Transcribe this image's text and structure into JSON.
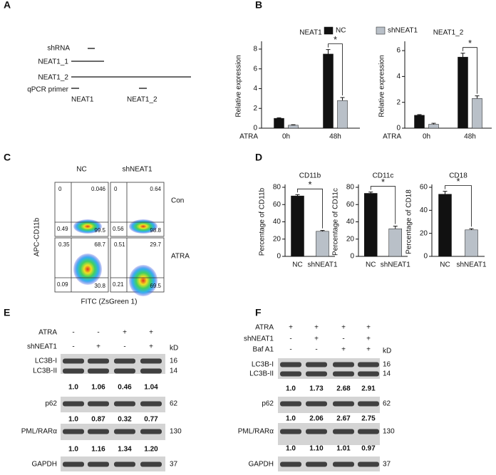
{
  "panel_labels": [
    "A",
    "B",
    "C",
    "D",
    "E",
    "F"
  ],
  "schematic": {
    "shrna": "shRNA",
    "isoforms": [
      "NEAT1_1",
      "NEAT1_2"
    ],
    "primer_label": "qPCR primer",
    "primers": [
      "NEAT1",
      "NEAT1_2"
    ]
  },
  "chart_data": [
    {
      "type": "bar",
      "title": "NEAT1",
      "y_label": "Relative expression",
      "x_label": "ATRA",
      "categories": [
        "0h",
        "48h"
      ],
      "series": [
        {
          "name": "NC",
          "color": "#111111",
          "values": [
            1.0,
            7.5
          ],
          "errors": [
            0.05,
            0.45
          ]
        },
        {
          "color": "#b9c0c8",
          "values": [
            0.3,
            2.8
          ],
          "errors": [
            0.05,
            0.3
          ]
        }
      ],
      "ylim": [
        0,
        8.5
      ],
      "yticks": [
        0,
        2,
        4,
        6,
        8
      ],
      "annotation": "*"
    },
    {
      "type": "bar",
      "title": "NEAT1_2",
      "y_label": "Relative expression",
      "x_label": "ATRA",
      "categories": [
        "0h",
        "48h"
      ],
      "series": [
        {
          "color": "#111111",
          "values": [
            1.0,
            5.5
          ],
          "errors": [
            0.05,
            0.3
          ]
        },
        {
          "name": "shNEAT1",
          "color": "#b9c0c8",
          "values": [
            0.3,
            2.3
          ],
          "errors": [
            0.08,
            0.2
          ]
        }
      ],
      "ylim": [
        0,
        6.5
      ],
      "yticks": [
        0,
        2,
        4,
        6
      ],
      "annotation": "*"
    },
    {
      "type": "bar",
      "title": "CD11b",
      "y_label": "Percentage of CD11b",
      "categories": [
        "NC",
        "shNEAT1"
      ],
      "values": [
        70,
        29
      ],
      "errors": [
        1.5,
        1
      ],
      "colors": [
        "#111111",
        "#b9c0c8"
      ],
      "ylim": [
        0,
        80
      ],
      "yticks": [
        0,
        20,
        40,
        60,
        80
      ],
      "annotation": "*"
    },
    {
      "type": "bar",
      "title": "CD11c",
      "y_label": "Percentage of CD11c",
      "categories": [
        "NC",
        "shNEAT1"
      ],
      "values": [
        73,
        32
      ],
      "errors": [
        1.5,
        3
      ],
      "colors": [
        "#111111",
        "#b9c0c8"
      ],
      "ylim": [
        0,
        80
      ],
      "yticks": [
        0,
        20,
        40,
        60,
        80
      ],
      "annotation": "*"
    },
    {
      "type": "bar",
      "title": "CD18",
      "y_label": "Percentage of CD18",
      "categories": [
        "NC",
        "shNEAT1"
      ],
      "values": [
        54,
        23
      ],
      "errors": [
        2.5,
        1
      ],
      "colors": [
        "#111111",
        "#b9c0c8"
      ],
      "ylim": [
        0,
        60
      ],
      "yticks": [
        0,
        20,
        40,
        60
      ],
      "annotation": "*"
    }
  ],
  "flow": {
    "columns": [
      "NC",
      "shNEAT1"
    ],
    "rows": [
      "Con",
      "ATRA"
    ],
    "y_label": "APC-CD11b",
    "x_label": "FITC (ZsGreen 1)",
    "quadrants": [
      [
        [
          "0",
          "0.046",
          "0.49",
          "99.5"
        ],
        [
          "0",
          "0.64",
          "0.56",
          "98.8"
        ]
      ],
      [
        [
          "0.35",
          "68.7",
          "0.09",
          "30.8"
        ],
        [
          "0.51",
          "29.7",
          "0.21",
          "69.5"
        ]
      ]
    ]
  },
  "blots": [
    {
      "conditions": [
        {
          "name": "ATRA",
          "signs": [
            "-",
            "-",
            "+",
            "+"
          ]
        },
        {
          "name": "shNEAT1",
          "signs": [
            "-",
            "+",
            "-",
            "+"
          ]
        }
      ],
      "kd_label": "kD",
      "rows": [
        {
          "names": [
            "LC3B-I",
            "LC3B-II"
          ],
          "kd": [
            "16",
            "14"
          ],
          "quant": [
            "1.0",
            "1.06",
            "0.46",
            "1.04"
          ]
        },
        {
          "names": [
            "p62"
          ],
          "kd": [
            "62"
          ],
          "quant": [
            "1.0",
            "0.87",
            "0.32",
            "0.77"
          ]
        },
        {
          "names": [
            "PML/RARα"
          ],
          "kd": [
            "130"
          ],
          "quant": [
            "1.0",
            "1.16",
            "1.34",
            "1.20"
          ]
        },
        {
          "names": [
            "GAPDH"
          ],
          "kd": [
            "37"
          ]
        }
      ]
    },
    {
      "conditions": [
        {
          "name": "ATRA",
          "signs": [
            "+",
            "+",
            "+",
            "+"
          ]
        },
        {
          "name": "shNEAT1",
          "signs": [
            "-",
            "+",
            "-",
            "+"
          ]
        },
        {
          "name": "Baf A1",
          "signs": [
            "-",
            "-",
            "+",
            "+"
          ]
        }
      ],
      "kd_label": "kD",
      "rows": [
        {
          "names": [
            "LC3B-I",
            "LC3B-II"
          ],
          "kd": [
            "16",
            "14"
          ],
          "quant": [
            "1.0",
            "1.73",
            "2.68",
            "2.91"
          ]
        },
        {
          "names": [
            "p62"
          ],
          "kd": [
            "62"
          ],
          "quant": [
            "1.0",
            "2.06",
            "2.67",
            "2.75"
          ]
        },
        {
          "names": [
            "PML/RARα"
          ],
          "kd": [
            "130"
          ],
          "quant": [
            "1.0",
            "1.10",
            "1.01",
            "0.97"
          ]
        },
        {
          "names": [
            "GAPDH"
          ],
          "kd": [
            "37"
          ]
        }
      ]
    }
  ]
}
